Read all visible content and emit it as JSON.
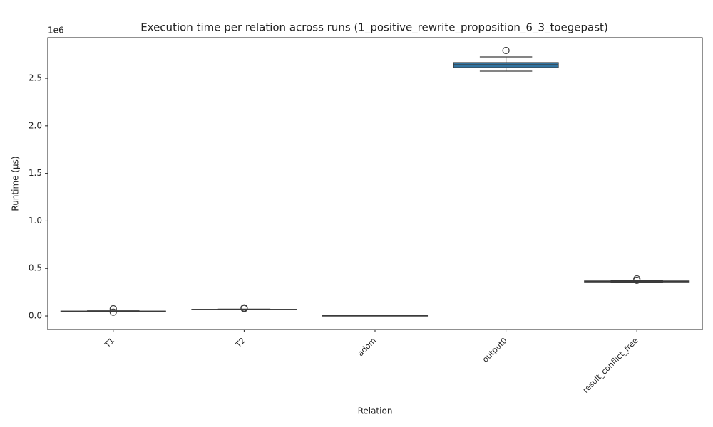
{
  "chart_data": {
    "type": "box",
    "title": "Execution time per relation across runs (1_positive_rewrite_proposition_6_3_toegepast)",
    "x_label": "Relation",
    "y_label": "Runtime (µs)",
    "y_offset_label": "1e6",
    "categories": [
      "T1",
      "T2",
      "adom",
      "output0",
      "result_conflict_free"
    ],
    "color": "#3274a1",
    "boxes": [
      {
        "min": 0.045,
        "q1": 0.047,
        "median": 0.049,
        "q3": 0.051,
        "max": 0.055,
        "outliers": [
          0.075,
          0.04
        ]
      },
      {
        "min": 0.066,
        "q1": 0.067,
        "median": 0.068,
        "q3": 0.07,
        "max": 0.072,
        "outliers": [
          0.085,
          0.078
        ]
      },
      {
        "min": 0.001,
        "q1": 0.002,
        "median": 0.002,
        "q3": 0.003,
        "max": 0.004,
        "outliers": []
      },
      {
        "min": 2.575,
        "q1": 2.612,
        "median": 2.642,
        "q3": 2.665,
        "max": 2.725,
        "outliers": [
          2.792
        ]
      },
      {
        "min": 0.355,
        "q1": 0.358,
        "median": 0.362,
        "q3": 0.368,
        "max": 0.372,
        "outliers": [
          0.39,
          0.375
        ]
      }
    ],
    "ylim": [
      -0.142,
      2.927
    ],
    "yticks": [
      {
        "value": 0,
        "label": "0.0"
      },
      0.5,
      {
        "value": 1,
        "label": "1.0"
      },
      1.5,
      {
        "value": 2,
        "label": "2.0"
      },
      2.5
    ]
  }
}
